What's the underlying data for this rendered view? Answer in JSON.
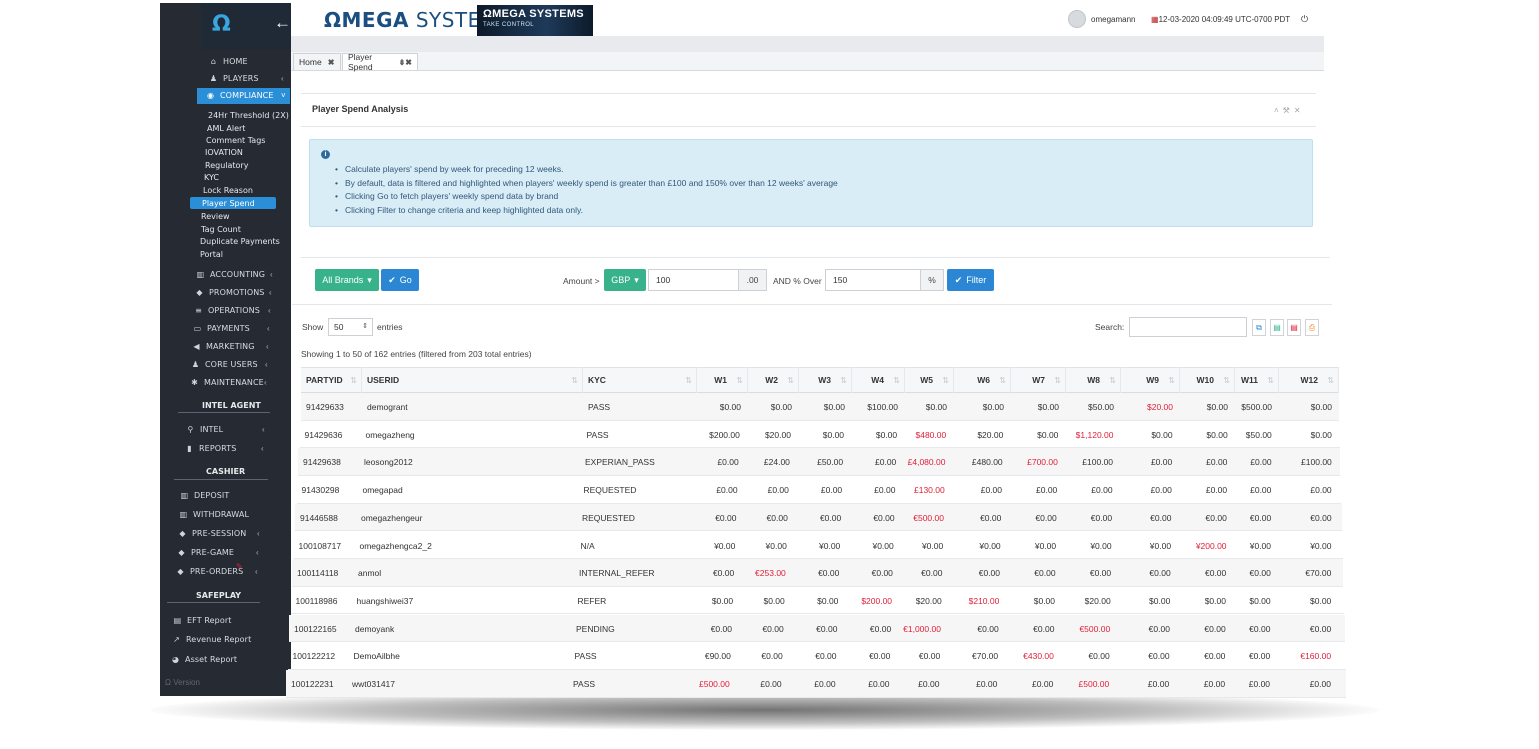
{
  "sidebar": {
    "logo": "Ω",
    "menu": [
      {
        "label": "HOME",
        "icon": "home-icon"
      },
      {
        "label": "PLAYERS",
        "icon": "users-icon"
      },
      {
        "label": "COMPLIANCE",
        "icon": "globe-icon"
      }
    ],
    "compliance_sub": [
      "24Hr Threshold (2X)",
      "AML Alert",
      "Comment Tags",
      "IOVATION",
      "Regulatory",
      "KYC",
      "Lock Reason",
      "Player Spend",
      "Review",
      "Tag Count",
      "Duplicate Payments",
      "Portal"
    ],
    "menu2": [
      "ACCOUNTING",
      "PROMOTIONS",
      "OPERATIONS",
      "PAYMENTS",
      "MARKETING",
      "CORE USERS",
      "MAINTENANCE"
    ],
    "section_intel": "INTEL AGENT",
    "intel_items": [
      "INTEL",
      "REPORTS"
    ],
    "section_cashier": "CASHIER",
    "cashier_items": [
      "DEPOSIT",
      "WITHDRAWAL",
      "PRE-SESSION",
      "PRE-GAME",
      "PRE-ORDERS"
    ],
    "section_safeplay": "SAFEPLAY",
    "safeplay_items": [
      "EFT Report",
      "Revenue Report",
      "Asset Report"
    ],
    "version": "Ω Version"
  },
  "header": {
    "brand_prefix": "ΩMEGA",
    "brand_suffix": " SYSTEMS",
    "banner_title": "ΩMEGA SYSTEMS",
    "banner_sub": "TAKE CONTROL",
    "user": "omegamann",
    "datetime": "12-03-2020 04:09:49  UTC-0700 PDT"
  },
  "tabs": [
    {
      "label": "Home"
    },
    {
      "label": "Player Spend"
    }
  ],
  "panel": {
    "title": "Player Spend Analysis",
    "info": [
      "Calculate players' spend by week for preceding 12 weeks.",
      "By default, data is filtered and highlighted when players' weekly spend is greater than £100 and 150% over than 12 weeks' average",
      "Clicking Go to fetch players' weekly spend data by brand",
      "Clicking Filter to change criteria and keep highlighted data only."
    ]
  },
  "controls": {
    "brands": "All Brands",
    "go": "Go",
    "amount_label": "Amount >",
    "currency": "GBP",
    "amount": "100",
    "amount_suffix": ".00",
    "pct_label": "AND % Over",
    "pct": "150",
    "pct_suffix": "%",
    "filter": "Filter",
    "show_label": "Show",
    "entries_value": "50",
    "entries_label": "entries",
    "search_label": "Search:",
    "summary": "Showing 1 to 50 of 162 entries (filtered from 203 total entries)"
  },
  "table": {
    "columns": [
      "PARTYID",
      "USERID",
      "KYC",
      "W1",
      "W2",
      "W3",
      "W4",
      "W5",
      "W6",
      "W7",
      "W8",
      "W9",
      "W10",
      "W11",
      "W12"
    ],
    "rows": [
      [
        "91429633",
        "demogrant",
        "PASS",
        "$0.00",
        "$0.00",
        "$0.00",
        "$100.00",
        "$0.00",
        "$0.00",
        "$0.00",
        "$50.00",
        "$20.00",
        "$0.00",
        "$500.00",
        "$0.00"
      ],
      [
        "91429636",
        "omegazheng",
        "PASS",
        "$200.00",
        "$20.00",
        "$0.00",
        "$0.00",
        "$480.00",
        "$20.00",
        "$0.00",
        "$1,120.00",
        "$0.00",
        "$0.00",
        "$50.00",
        "$0.00"
      ],
      [
        "91429638",
        "leosong2012",
        "EXPERIAN_PASS",
        "£0.00",
        "£24.00",
        "£50.00",
        "£0.00",
        "£4,080.00",
        "£480.00",
        "£700.00",
        "£100.00",
        "£0.00",
        "£0.00",
        "£0.00",
        "£100.00"
      ],
      [
        "91430298",
        "omegapad",
        "REQUESTED",
        "£0.00",
        "£0.00",
        "£0.00",
        "£0.00",
        "£130.00",
        "£0.00",
        "£0.00",
        "£0.00",
        "£0.00",
        "£0.00",
        "£0.00",
        "£0.00"
      ],
      [
        "91446588",
        "omegazhengeur",
        "REQUESTED",
        "€0.00",
        "€0.00",
        "€0.00",
        "€0.00",
        "€500.00",
        "€0.00",
        "€0.00",
        "€0.00",
        "€0.00",
        "€0.00",
        "€0.00",
        "€0.00"
      ],
      [
        "100108717",
        "omegazhengca2_2",
        "N/A",
        "¥0.00",
        "¥0.00",
        "¥0.00",
        "¥0.00",
        "¥0.00",
        "¥0.00",
        "¥0.00",
        "¥0.00",
        "¥0.00",
        "¥200.00",
        "¥0.00",
        "¥0.00"
      ],
      [
        "100114118",
        "anmol",
        "INTERNAL_REFER",
        "€0.00",
        "€253.00",
        "€0.00",
        "€0.00",
        "€0.00",
        "€0.00",
        "€0.00",
        "€0.00",
        "€0.00",
        "€0.00",
        "€0.00",
        "€70.00"
      ],
      [
        "100118986",
        "huangshiwei37",
        "REFER",
        "$0.00",
        "$0.00",
        "$0.00",
        "$200.00",
        "$20.00",
        "$210.00",
        "$0.00",
        "$20.00",
        "$0.00",
        "$0.00",
        "$0.00",
        "$0.00"
      ],
      [
        "100122165",
        "demoyank",
        "PENDING",
        "€0.00",
        "€0.00",
        "€0.00",
        "€0.00",
        "€1,000.00",
        "€0.00",
        "€0.00",
        "€500.00",
        "€0.00",
        "€0.00",
        "€0.00",
        "€0.00"
      ],
      [
        "100122212",
        "DemoAilbhe",
        "PASS",
        "€90.00",
        "€0.00",
        "€0.00",
        "€0.00",
        "€0.00",
        "€70.00",
        "€430.00",
        "€0.00",
        "€0.00",
        "€0.00",
        "€0.00",
        "€160.00"
      ],
      [
        "100122231",
        "wwt031417",
        "PASS",
        "£500.00",
        "£0.00",
        "£0.00",
        "£0.00",
        "£0.00",
        "£0.00",
        "£0.00",
        "£500.00",
        "£0.00",
        "£0.00",
        "£0.00",
        "£0.00"
      ]
    ],
    "highlighted": [
      [
        11
      ],
      [
        7,
        10
      ],
      [
        7,
        9
      ],
      [
        7
      ],
      [
        7
      ],
      [
        12
      ],
      [
        4
      ],
      [
        6,
        8
      ],
      [
        7,
        10
      ],
      [
        9,
        14
      ],
      [
        3,
        10
      ]
    ]
  },
  "colors": {
    "sidebar_bg": "#252a33",
    "accent": "#2b8fd8",
    "green": "#37b28a",
    "highlight_red": "#e0203a",
    "info_bg": "#d9edf7"
  }
}
